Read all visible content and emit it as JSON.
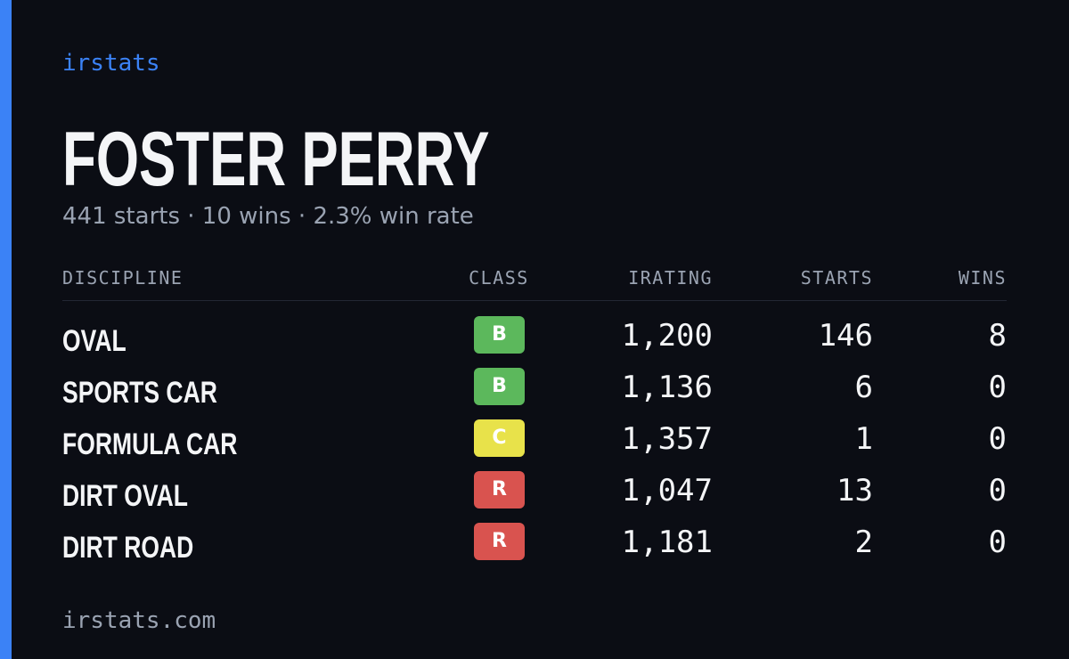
{
  "brand": "irstats",
  "title": "FOSTER PERRY",
  "subtitle": "441 starts · 10 wins · 2.3% win rate",
  "table": {
    "columns": [
      "DISCIPLINE",
      "CLASS",
      "IRATING",
      "STARTS",
      "WINS"
    ],
    "rows": [
      {
        "discipline": "OVAL",
        "class": "B",
        "class_color": "#5cb85c",
        "irating": "1,200",
        "starts": "146",
        "wins": "8"
      },
      {
        "discipline": "SPORTS CAR",
        "class": "B",
        "class_color": "#5cb85c",
        "irating": "1,136",
        "starts": "6",
        "wins": "0"
      },
      {
        "discipline": "FORMULA CAR",
        "class": "C",
        "class_color": "#e8e24a",
        "irating": "1,357",
        "starts": "1",
        "wins": "0"
      },
      {
        "discipline": "DIRT OVAL",
        "class": "R",
        "class_color": "#d9534f",
        "irating": "1,047",
        "starts": "13",
        "wins": "0"
      },
      {
        "discipline": "DIRT ROAD",
        "class": "R",
        "class_color": "#d9534f",
        "irating": "1,181",
        "starts": "2",
        "wins": "0"
      }
    ]
  },
  "footer": "irstats.com"
}
